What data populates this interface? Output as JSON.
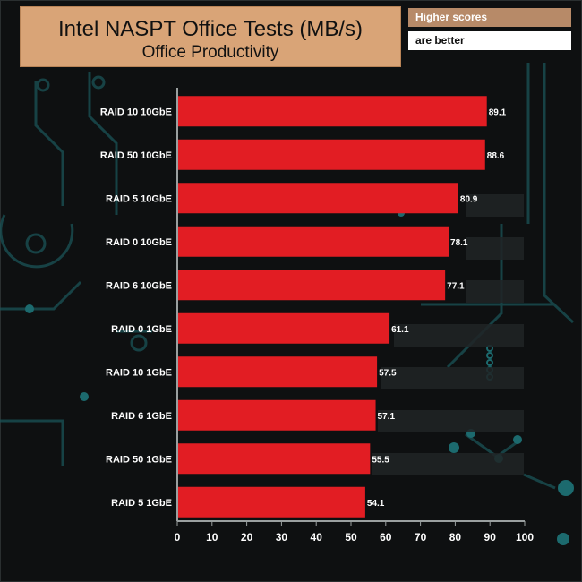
{
  "header": {
    "title": "Intel NASPT Office Tests (MB/s)",
    "subtitle": "Office Productivity"
  },
  "notes": {
    "line1": "Higher scores",
    "line2": "are better"
  },
  "colors": {
    "bar": "#e21d23",
    "title_bg": "#d9a477",
    "note_bg": "#b78a68",
    "axis_text": "#ffffff",
    "background": "#0e1011",
    "decor": "#1e6c70"
  },
  "chart_data": {
    "type": "bar",
    "orientation": "horizontal",
    "title": "Intel NASPT Office Tests (MB/s)",
    "subtitle": "Office Productivity",
    "categories": [
      "RAID 10 10GbE",
      "RAID 50 10GbE",
      "RAID 5 10GbE",
      "RAID 0 10GbE",
      "RAID 6 10GbE",
      "RAID 0 1GbE",
      "RAID 10 1GbE",
      "RAID 6 1GbE",
      "RAID 50 1GbE",
      "RAID 5 1GbE"
    ],
    "values": [
      89.1,
      88.6,
      80.9,
      78.1,
      77.1,
      61.1,
      57.5,
      57.1,
      55.5,
      54.1
    ],
    "value_labels": [
      "89.1",
      "88.6",
      "80.9",
      "78.1",
      "77.1",
      "61.1",
      "57.5",
      "57.1",
      "55.5",
      "54.1"
    ],
    "xlim": [
      0,
      100
    ],
    "xticks": [
      "0",
      "10",
      "20",
      "30",
      "40",
      "50",
      "60",
      "70",
      "80",
      "90",
      "100"
    ],
    "grid": false,
    "legend": "none"
  }
}
